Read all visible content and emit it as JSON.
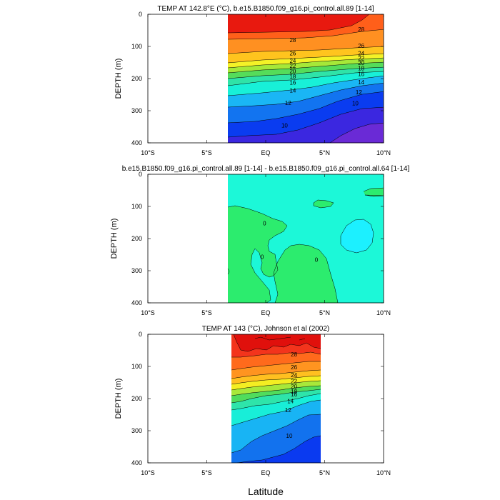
{
  "figure": {
    "xlabel": "Latitude",
    "ylabel": "DEPTH (m)"
  },
  "chart_data": [
    {
      "type": "contour",
      "title": "TEMP AT 142.8°E (°C), b.e15.B1850.f09_g16.pi_control.all.89 [1-14]",
      "xlabel": "",
      "ylabel": "DEPTH (m)",
      "xlim": [
        -10,
        10
      ],
      "ylim": [
        400,
        0
      ],
      "xticks": [
        "10°S",
        "5°S",
        "EQ",
        "5°N",
        "10°N"
      ],
      "yticks": [
        "0",
        "100",
        "200",
        "300",
        "400"
      ],
      "data_extent_lat": [
        -3,
        10
      ],
      "contour_levels": [
        26,
        24,
        22,
        20,
        18,
        16,
        14,
        12,
        10
      ],
      "band_colors": [
        "#e8190f",
        "#ff5f1a",
        "#ff9021",
        "#ffc41e",
        "#f4f227",
        "#a6e838",
        "#55dc5a",
        "#2fe3a8",
        "#18f0d8",
        "#1ab6f5",
        "#1274f0",
        "#0a3cf0",
        "#3b27e0",
        "#6a2ad6"
      ],
      "labels": [
        {
          "text": "28",
          "lat": 2.3,
          "depth": 80
        },
        {
          "text": "28",
          "lat": 8.1,
          "depth": 47
        },
        {
          "text": "26",
          "lat": 2.3,
          "depth": 121
        },
        {
          "text": "26",
          "lat": 8.1,
          "depth": 98
        },
        {
          "text": "24",
          "lat": 2.3,
          "depth": 144
        },
        {
          "text": "24",
          "lat": 8.1,
          "depth": 121
        },
        {
          "text": "22",
          "lat": 2.3,
          "depth": 160
        },
        {
          "text": "22",
          "lat": 8.1,
          "depth": 137
        },
        {
          "text": "20",
          "lat": 2.3,
          "depth": 177
        },
        {
          "text": "20",
          "lat": 8.1,
          "depth": 151
        },
        {
          "text": "18",
          "lat": 2.3,
          "depth": 193
        },
        {
          "text": "18",
          "lat": 8.1,
          "depth": 168
        },
        {
          "text": "16",
          "lat": 2.3,
          "depth": 212
        },
        {
          "text": "16",
          "lat": 8.1,
          "depth": 186
        },
        {
          "text": "14",
          "lat": 2.3,
          "depth": 237
        },
        {
          "text": "14",
          "lat": 8.1,
          "depth": 211
        },
        {
          "text": "12",
          "lat": 1.9,
          "depth": 275
        },
        {
          "text": "12",
          "lat": 7.9,
          "depth": 242
        },
        {
          "text": "10",
          "lat": 1.6,
          "depth": 345
        },
        {
          "text": "10",
          "lat": 7.6,
          "depth": 277
        }
      ]
    },
    {
      "type": "contour",
      "title": "b.e15.B1850.f09_g16.pi_control.all.89 [1-14] - b.e15.B1850.f09_g16.pi_control.all.64 [1-14]",
      "xlabel": "",
      "ylabel": "DEPTH (m)",
      "xlim": [
        -10,
        10
      ],
      "ylim": [
        400,
        0
      ],
      "xticks": [
        "10°S",
        "5°S",
        "EQ",
        "5°N",
        "10°N"
      ],
      "yticks": [
        "0",
        "100",
        "200",
        "300",
        "400"
      ],
      "data_extent_lat": [
        -3,
        10
      ],
      "contour_levels": [
        0
      ],
      "band_colors": [
        "#1cf8d8",
        "#2cec6e",
        "#1cf0ff"
      ],
      "labels": [
        {
          "text": "0",
          "lat": -0.1,
          "depth": 152
        },
        {
          "text": "0",
          "lat": -0.3,
          "depth": 257
        },
        {
          "text": "0",
          "lat": 4.3,
          "depth": 266
        }
      ]
    },
    {
      "type": "contour",
      "title": "TEMP AT 143 (°C), Johnson et al (2002)",
      "xlabel": "Latitude",
      "ylabel": "DEPTH (m)",
      "xlim": [
        -10,
        10
      ],
      "ylim": [
        400,
        0
      ],
      "xticks": [
        "10°S",
        "5°S",
        "EQ",
        "5°N",
        "10°N"
      ],
      "yticks": [
        "0",
        "100",
        "200",
        "300",
        "400"
      ],
      "data_extent_lat": [
        -2.7,
        5
      ],
      "contour_levels": [
        28,
        26,
        24,
        22,
        20,
        18,
        16,
        14,
        12,
        10
      ],
      "band_colors": [
        "#e0100c",
        "#f3341c",
        "#ff6a1c",
        "#ff9420",
        "#ffc020",
        "#f4ee22",
        "#a8e83a",
        "#50dc5c",
        "#2ee4aa",
        "#18eed8",
        "#18b4f4",
        "#1272ee",
        "#0a3af0"
      ],
      "labels": [
        {
          "text": "28",
          "lat": 2.4,
          "depth": 62
        },
        {
          "text": "26",
          "lat": 2.4,
          "depth": 102
        },
        {
          "text": "24",
          "lat": 2.4,
          "depth": 127
        },
        {
          "text": "22",
          "lat": 2.4,
          "depth": 145
        },
        {
          "text": "20",
          "lat": 2.4,
          "depth": 162
        },
        {
          "text": "18",
          "lat": 2.4,
          "depth": 178
        },
        {
          "text": "16",
          "lat": 2.4,
          "depth": 187
        },
        {
          "text": "14",
          "lat": 2.1,
          "depth": 208
        },
        {
          "text": "12",
          "lat": 1.9,
          "depth": 236
        },
        {
          "text": "10",
          "lat": 2.0,
          "depth": 316
        }
      ]
    }
  ]
}
